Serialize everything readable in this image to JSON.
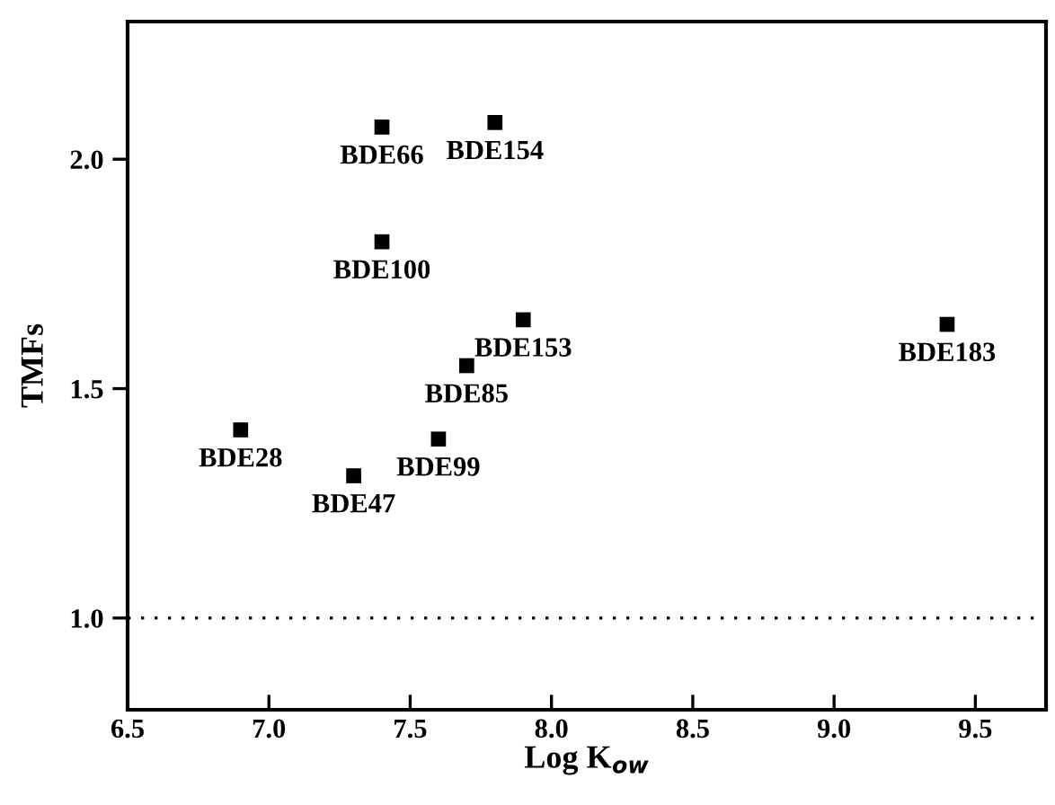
{
  "chart_data": {
    "type": "scatter",
    "xlabel": "Log K$_{ow}$",
    "ylabel": "TMFs",
    "x": [
      6.9,
      7.3,
      7.4,
      7.4,
      7.6,
      7.7,
      7.8,
      7.9,
      9.4
    ],
    "values": [
      1.41,
      1.31,
      2.07,
      1.82,
      1.39,
      1.55,
      2.08,
      1.65,
      1.64
    ],
    "color": "#000000",
    "marker": "square",
    "annotations": [
      {
        "text": "BDE28",
        "x": 6.9,
        "y": 1.41
      },
      {
        "text": "BDE47",
        "x": 7.3,
        "y": 1.31
      },
      {
        "text": "BDE66",
        "x": 7.4,
        "y": 2.07
      },
      {
        "text": "BDE100",
        "x": 7.4,
        "y": 1.82
      },
      {
        "text": "BDE99",
        "x": 7.6,
        "y": 1.39
      },
      {
        "text": "BDE85",
        "x": 7.7,
        "y": 1.55
      },
      {
        "text": "BDE154",
        "x": 7.8,
        "y": 2.08
      },
      {
        "text": "BDE153",
        "x": 7.9,
        "y": 1.65
      },
      {
        "text": "BDE183",
        "x": 9.4,
        "y": 1.64
      }
    ],
    "xlim": [
      6.5,
      9.75
    ],
    "ylim": [
      0.8,
      2.3
    ],
    "xticks": [
      {
        "value": 6.5,
        "label": "6.5"
      },
      {
        "value": 7.0,
        "label": "7.0"
      },
      {
        "value": 7.5,
        "label": "7.5"
      },
      {
        "value": 8.0,
        "label": "8.0"
      },
      {
        "value": 8.5,
        "label": "8.5"
      },
      {
        "value": 9.0,
        "label": "9.0"
      },
      {
        "value": 9.5,
        "label": "9.5"
      }
    ],
    "yticks": [
      {
        "value": 1.0,
        "label": "1.0"
      },
      {
        "value": 1.5,
        "label": "1.5"
      },
      {
        "value": 2.0,
        "label": "2.0"
      }
    ],
    "ref_lines": [
      {
        "axis": "y",
        "value": 1.0,
        "label": null,
        "color": "#000000",
        "line_style": "dotted"
      }
    ],
    "grid": false,
    "legend": false
  }
}
